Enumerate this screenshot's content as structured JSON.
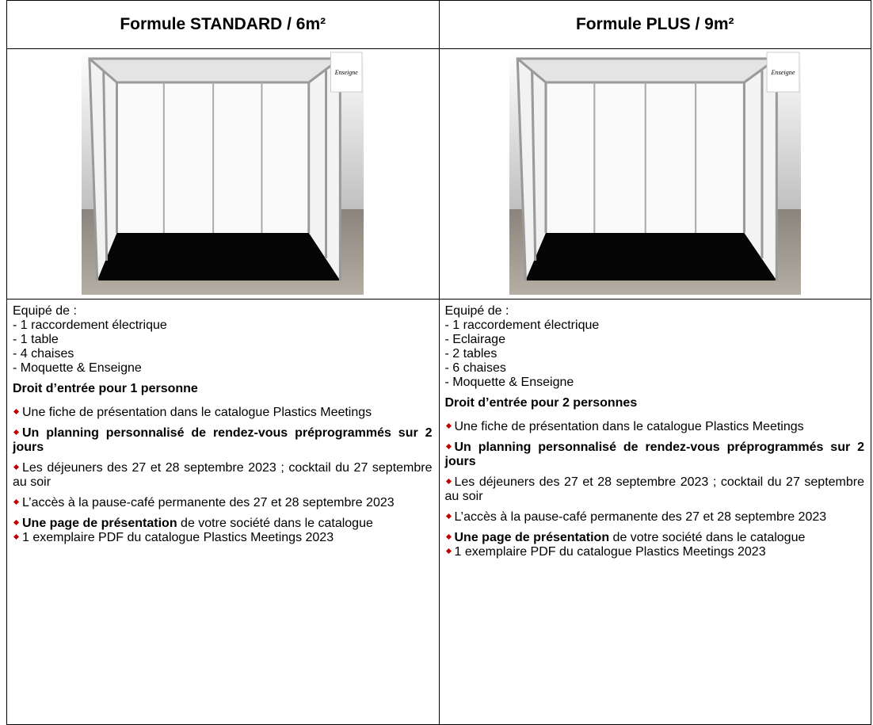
{
  "table": {
    "columns": [
      {
        "title": "Formule STANDARD / 6m²",
        "sign": "Enseigne",
        "equipment_heading": "Equipé de :",
        "equipment": [
          "- 1 raccordement électrique",
          "- 1 table",
          "- 4 chaises",
          "- Moquette & Enseigne"
        ],
        "entry": "Droit d’entrée pour 1 personne",
        "benefits": [
          {
            "text": "Une fiche de présentation dans le catalogue Plastics Meetings"
          },
          {
            "bold": "Un planning personnalisé de rendez-vous préprogrammés sur 2 jours"
          },
          {
            "text": "Les déjeuners des 27 et 28 septembre 2023 ; cocktail du 27 septembre au soir"
          },
          {
            "text": "L’accès à la pause-café permanente des 27 et 28 septembre 2023"
          },
          {
            "bold": "Une page de présentation",
            "text": " de votre société dans le catalogue"
          },
          {
            "text": "1 exemplaire PDF du catalogue Plastics Meetings 2023"
          }
        ]
      },
      {
        "title": "Formule PLUS / 9m²",
        "sign": "Enseigne",
        "equipment_heading": "Equipé de :",
        "equipment": [
          "- 1 raccordement électrique",
          "- Eclairage",
          "- 2 tables",
          "- 6 chaises",
          "- Moquette & Enseigne"
        ],
        "entry": "Droit d’entrée pour 2 personnes",
        "benefits": [
          {
            "text": "Une fiche de présentation dans le catalogue Plastics Meetings"
          },
          {
            "bold": "Un planning personnalisé de rendez-vous préprogrammés sur 2 jours"
          },
          {
            "text": "Les déjeuners des 27 et 28 septembre 2023 ; cocktail du 27 septembre au soir"
          },
          {
            "text": "L’accès à la pause-café permanente des 27 et 28 septembre 2023"
          },
          {
            "bold": "Une page de présentation",
            "text": " de votre société dans le catalogue"
          },
          {
            "text": "1 exemplaire PDF du catalogue Plastics Meetings 2023"
          }
        ]
      }
    ]
  }
}
